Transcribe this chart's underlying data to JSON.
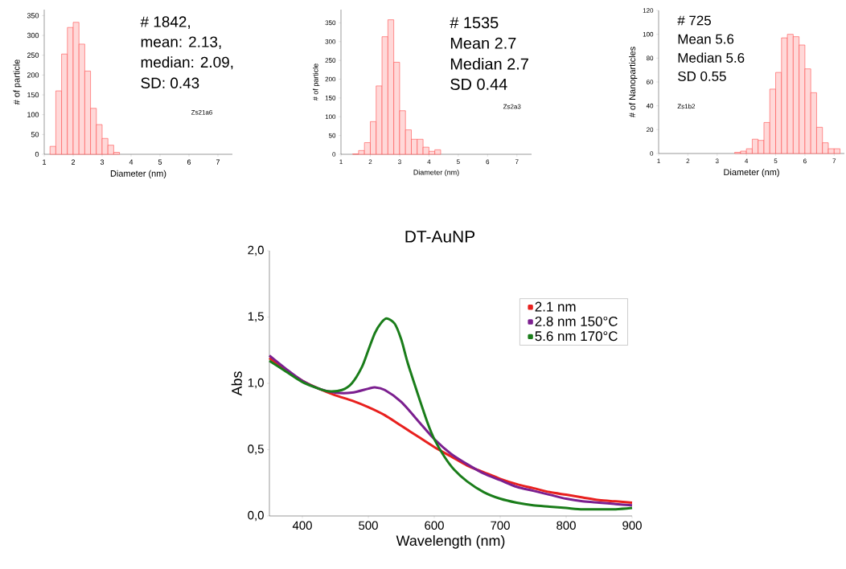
{
  "chart_data": [
    {
      "type": "histogram",
      "xlabel": "Diameter (nm)",
      "ylabel": "# of particle",
      "color": "#ff4d4d",
      "bins": [
        1.2,
        1.4,
        1.6,
        1.8,
        2.0,
        2.2,
        2.4,
        2.6,
        2.8,
        3.0,
        3.2,
        3.4,
        3.6
      ],
      "values": [
        20,
        160,
        253,
        320,
        333,
        278,
        210,
        116,
        75,
        40,
        23,
        5
      ],
      "xlim": [
        1,
        7.5
      ],
      "xticks": [
        1,
        2,
        3,
        4,
        5,
        6,
        7
      ],
      "ylim": [
        0,
        365
      ],
      "yticks": [
        0,
        50,
        100,
        150,
        200,
        250,
        300,
        350
      ],
      "annotations": [
        "# 1842,",
        "mean: 2.13,",
        "median: 2.09,",
        "SD: 0.43",
        "Zs21a6"
      ]
    },
    {
      "type": "histogram",
      "xlabel": "Diameter (nm)",
      "ylabel": "# of particle",
      "color": "#ff4d4d",
      "bins": [
        1.4,
        1.6,
        1.8,
        2.0,
        2.2,
        2.4,
        2.6,
        2.8,
        3.0,
        3.2,
        3.4,
        3.6,
        3.8,
        4.0,
        4.2,
        4.4
      ],
      "values": [
        1,
        10,
        31,
        87,
        182,
        313,
        358,
        245,
        116,
        65,
        40,
        40,
        19,
        8,
        12
      ],
      "xlim": [
        1,
        7.5
      ],
      "xticks": [
        1,
        2,
        3,
        4,
        5,
        6,
        7
      ],
      "ylim": [
        0,
        385
      ],
      "yticks": [
        0,
        50,
        100,
        150,
        200,
        250,
        300,
        350
      ],
      "annotations": [
        "# 1535",
        "Mean 2.7",
        "Median 2.7",
        "SD 0.44",
        "Zs2a3"
      ]
    },
    {
      "type": "histogram",
      "xlabel": "Diameter (nm)",
      "ylabel": "# of Nanoparticles",
      "color": "#ff4d4d",
      "bins": [
        3.6,
        3.8,
        4.0,
        4.2,
        4.4,
        4.6,
        4.8,
        5.0,
        5.2,
        5.4,
        5.6,
        5.8,
        6.0,
        6.2,
        6.4,
        6.6,
        6.8,
        7.0,
        7.2
      ],
      "values": [
        1,
        2,
        4,
        12,
        11,
        26,
        54,
        68,
        97,
        100,
        98,
        91,
        71,
        51,
        22,
        9,
        4,
        4
      ],
      "xlim": [
        1,
        7.35
      ],
      "xticks": [
        1,
        2,
        3,
        4,
        5,
        6,
        7
      ],
      "ylim": [
        0,
        120
      ],
      "yticks": [
        0,
        20,
        40,
        60,
        80,
        100,
        120
      ],
      "annotations": [
        "# 725",
        "Mean 5.6",
        "Median 5.6",
        "SD 0.55",
        "Zs1b2"
      ]
    },
    {
      "type": "line",
      "title": "DT-AuNP",
      "xlabel": "Wavelength (nm)",
      "ylabel": "Abs",
      "legend": "top right",
      "xlim": [
        350,
        900
      ],
      "xticks": [
        400,
        500,
        600,
        700,
        800,
        900
      ],
      "ylim": [
        0,
        2
      ],
      "yticks": [
        {
          "value": 0,
          "label": "0,0"
        },
        {
          "value": 0.5,
          "label": "0,5"
        },
        {
          "value": 1,
          "label": "1,0"
        },
        {
          "value": 1.5,
          "label": "1,5"
        },
        {
          "value": 2,
          "label": "2,0"
        }
      ],
      "series": [
        {
          "name": "2.1 nm",
          "color": "#e8201e",
          "x": [
            350,
            375,
            400,
            425,
            450,
            475,
            500,
            525,
            550,
            575,
            600,
            625,
            650,
            675,
            700,
            725,
            750,
            775,
            800,
            825,
            850,
            875,
            900
          ],
          "values": [
            1.19,
            1.1,
            1.02,
            0.96,
            0.91,
            0.87,
            0.82,
            0.76,
            0.68,
            0.6,
            0.52,
            0.45,
            0.38,
            0.33,
            0.28,
            0.24,
            0.21,
            0.18,
            0.16,
            0.14,
            0.12,
            0.11,
            0.1
          ]
        },
        {
          "name": "2.8 nm 150°C",
          "color": "#7b1f8f",
          "x": [
            350,
            375,
            400,
            425,
            450,
            475,
            500,
            510,
            525,
            550,
            575,
            600,
            625,
            650,
            675,
            700,
            725,
            750,
            775,
            800,
            825,
            850,
            875,
            900
          ],
          "values": [
            1.21,
            1.11,
            1.02,
            0.96,
            0.93,
            0.93,
            0.96,
            0.97,
            0.95,
            0.86,
            0.72,
            0.58,
            0.47,
            0.39,
            0.32,
            0.27,
            0.22,
            0.19,
            0.16,
            0.13,
            0.11,
            0.1,
            0.09,
            0.08
          ]
        },
        {
          "name": "5.6 nm 170°C",
          "color": "#1a7d1a",
          "x": [
            350,
            375,
            400,
            425,
            440,
            460,
            475,
            490,
            500,
            510,
            520,
            528,
            540,
            550,
            560,
            575,
            590,
            600,
            615,
            630,
            650,
            675,
            700,
            725,
            750,
            775,
            800,
            825,
            850,
            875,
            900
          ],
          "values": [
            1.17,
            1.09,
            1.01,
            0.96,
            0.94,
            0.95,
            1.0,
            1.12,
            1.25,
            1.38,
            1.46,
            1.49,
            1.45,
            1.33,
            1.15,
            0.92,
            0.7,
            0.58,
            0.45,
            0.35,
            0.26,
            0.18,
            0.13,
            0.1,
            0.08,
            0.07,
            0.06,
            0.05,
            0.05,
            0.05,
            0.06
          ]
        }
      ]
    }
  ]
}
